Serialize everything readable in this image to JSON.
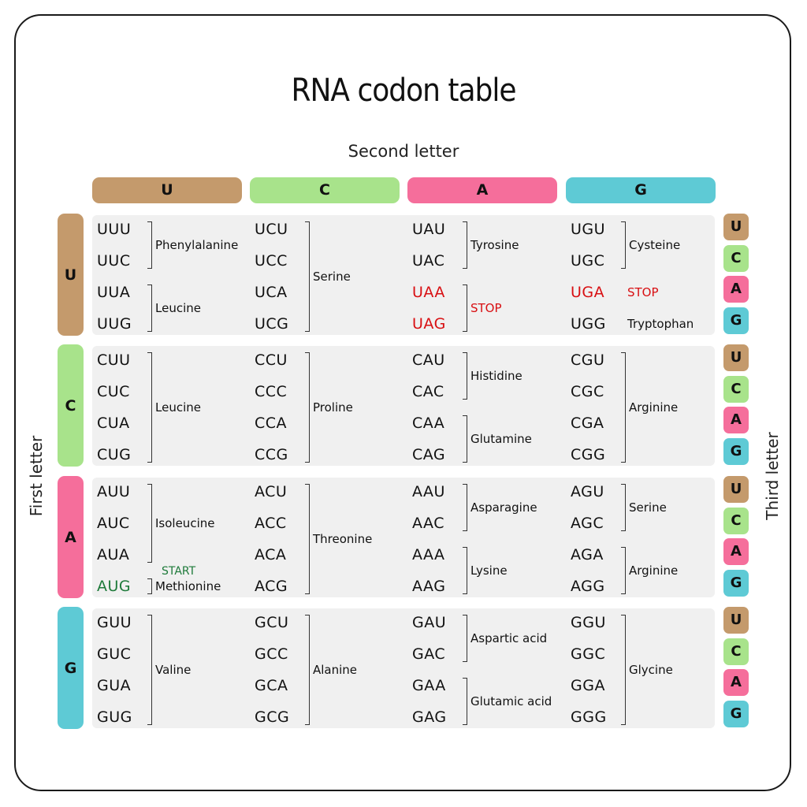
{
  "title": "RNA codon table",
  "axis_labels": {
    "second": "Second letter",
    "first": "First letter",
    "third": "Third letter"
  },
  "colors": {
    "U": "#c49a6c",
    "C": "#a8e38b",
    "A": "#f56e9b",
    "G": "#5ecad5",
    "stop": "#d80f12",
    "start": "#1e7a3a"
  },
  "second_letters": [
    "U",
    "C",
    "A",
    "G"
  ],
  "first_letters": [
    "U",
    "C",
    "A",
    "G"
  ],
  "third_letters": [
    "U",
    "C",
    "A",
    "G"
  ],
  "blocks": [
    [
      {
        "codons": [
          "UUU",
          "UUC",
          "UUA",
          "UUG"
        ],
        "groups": [
          {
            "start": 0,
            "end": 1,
            "label": "Phenylalanine"
          },
          {
            "start": 2,
            "end": 3,
            "label": "Leucine"
          }
        ]
      },
      {
        "codons": [
          "UCU",
          "UCC",
          "UCA",
          "UCG"
        ],
        "groups": [
          {
            "start": 0,
            "end": 3,
            "label": "Serine"
          }
        ]
      },
      {
        "codons": [
          "UAU",
          "UAC",
          "UAA",
          "UAG"
        ],
        "red": [
          2,
          3
        ],
        "groups": [
          {
            "start": 0,
            "end": 1,
            "label": "Tyrosine"
          },
          {
            "start": 2,
            "end": 3,
            "label": "STOP",
            "red": true
          }
        ]
      },
      {
        "codons": [
          "UGU",
          "UGC",
          "UGA",
          "UGG"
        ],
        "red": [
          2
        ],
        "groups": [
          {
            "start": 0,
            "end": 1,
            "label": "Cysteine"
          },
          {
            "start": 2,
            "end": 2,
            "label": "STOP",
            "red": true,
            "nobracket": true
          },
          {
            "start": 3,
            "end": 3,
            "label": "Tryptophan",
            "nobracket": true
          }
        ]
      }
    ],
    [
      {
        "codons": [
          "CUU",
          "CUC",
          "CUA",
          "CUG"
        ],
        "groups": [
          {
            "start": 0,
            "end": 3,
            "label": "Leucine"
          }
        ]
      },
      {
        "codons": [
          "CCU",
          "CCC",
          "CCA",
          "CCG"
        ],
        "groups": [
          {
            "start": 0,
            "end": 3,
            "label": "Proline"
          }
        ]
      },
      {
        "codons": [
          "CAU",
          "CAC",
          "CAA",
          "CAG"
        ],
        "groups": [
          {
            "start": 0,
            "end": 1,
            "label": "Histidine"
          },
          {
            "start": 2,
            "end": 3,
            "label": "Glutamine"
          }
        ]
      },
      {
        "codons": [
          "CGU",
          "CGC",
          "CGA",
          "CGG"
        ],
        "groups": [
          {
            "start": 0,
            "end": 3,
            "label": "Arginine"
          }
        ]
      }
    ],
    [
      {
        "codons": [
          "AUU",
          "AUC",
          "AUA",
          "AUG"
        ],
        "green": [
          3
        ],
        "groups": [
          {
            "start": 0,
            "end": 2,
            "label": "Isoleucine"
          },
          {
            "start": 3,
            "end": 3,
            "label": "Methionine",
            "start_note": "START"
          }
        ]
      },
      {
        "codons": [
          "ACU",
          "ACC",
          "ACA",
          "ACG"
        ],
        "groups": [
          {
            "start": 0,
            "end": 3,
            "label": "Threonine"
          }
        ]
      },
      {
        "codons": [
          "AAU",
          "AAC",
          "AAA",
          "AAG"
        ],
        "groups": [
          {
            "start": 0,
            "end": 1,
            "label": "Asparagine"
          },
          {
            "start": 2,
            "end": 3,
            "label": "Lysine"
          }
        ]
      },
      {
        "codons": [
          "AGU",
          "AGC",
          "AGA",
          "AGG"
        ],
        "groups": [
          {
            "start": 0,
            "end": 1,
            "label": "Serine"
          },
          {
            "start": 2,
            "end": 3,
            "label": "Arginine"
          }
        ]
      }
    ],
    [
      {
        "codons": [
          "GUU",
          "GUC",
          "GUA",
          "GUG"
        ],
        "groups": [
          {
            "start": 0,
            "end": 3,
            "label": "Valine"
          }
        ]
      },
      {
        "codons": [
          "GCU",
          "GCC",
          "GCA",
          "GCG"
        ],
        "groups": [
          {
            "start": 0,
            "end": 3,
            "label": "Alanine"
          }
        ]
      },
      {
        "codons": [
          "GAU",
          "GAC",
          "GAA",
          "GAG"
        ],
        "groups": [
          {
            "start": 0,
            "end": 1,
            "label": "Aspartic acid"
          },
          {
            "start": 2,
            "end": 3,
            "label": "Glutamic acid"
          }
        ]
      },
      {
        "codons": [
          "GGU",
          "GGC",
          "GGA",
          "GGG"
        ],
        "groups": [
          {
            "start": 0,
            "end": 3,
            "label": "Glycine"
          }
        ]
      }
    ]
  ]
}
